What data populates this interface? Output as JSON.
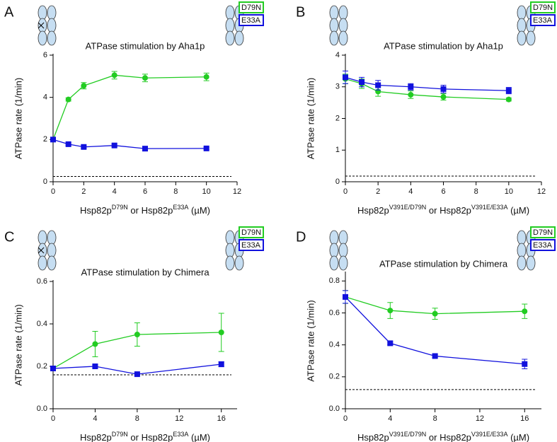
{
  "chart_data": [
    {
      "type": "line",
      "panel": "A",
      "title": "ATPase stimulation by Aha1p",
      "y_label": "ATPase rate (1/min)",
      "x_label": [
        "Hsp82p",
        "D79N",
        " or Hsp82p",
        "E33A",
        " (µM)"
      ],
      "x": [
        0,
        1,
        2,
        4,
        6,
        10
      ],
      "xlim": [
        0,
        12
      ],
      "xticks": [
        0,
        2,
        4,
        6,
        8,
        10,
        12
      ],
      "ylim": [
        0,
        6
      ],
      "yticks": [
        0,
        2,
        4,
        6
      ],
      "reference_line": 0.25,
      "series": [
        {
          "name": "D79N",
          "color": "#22cc22",
          "marker": "circle",
          "values": [
            2.0,
            3.9,
            4.55,
            5.05,
            4.92,
            4.97
          ],
          "errors": [
            0.08,
            0.08,
            0.15,
            0.18,
            0.18,
            0.18
          ]
        },
        {
          "name": "E33A",
          "color": "#1111dd",
          "marker": "square",
          "values": [
            2.0,
            1.78,
            1.65,
            1.72,
            1.57,
            1.58
          ],
          "errors": [
            0.06,
            0.06,
            0.06,
            0.06,
            0.05,
            0.05
          ]
        }
      ]
    },
    {
      "type": "line",
      "panel": "B",
      "title": "ATPase stimulation by Aha1p",
      "y_label": "ATPase rate (1/min)",
      "x_label": [
        "Hsp82p",
        "V391E/D79N",
        " or Hsp82p",
        "V391E/E33A",
        " (µM)"
      ],
      "x": [
        0,
        1,
        2,
        4,
        6,
        10
      ],
      "xlim": [
        0,
        12
      ],
      "xticks": [
        0,
        2,
        4,
        6,
        8,
        10,
        12
      ],
      "ylim": [
        0,
        4
      ],
      "yticks": [
        0,
        1,
        2,
        3,
        4
      ],
      "reference_line": 0.18,
      "series": [
        {
          "name": "D79N",
          "color": "#22cc22",
          "marker": "circle",
          "values": [
            3.25,
            3.1,
            2.85,
            2.75,
            2.68,
            2.6
          ],
          "errors": [
            0.15,
            0.15,
            0.15,
            0.12,
            0.1,
            0.05
          ]
        },
        {
          "name": "E33A",
          "color": "#1111dd",
          "marker": "square",
          "values": [
            3.3,
            3.15,
            3.05,
            3.0,
            2.93,
            2.88
          ],
          "errors": [
            0.2,
            0.15,
            0.15,
            0.1,
            0.12,
            0.1
          ]
        }
      ]
    },
    {
      "type": "line",
      "panel": "C",
      "title": "ATPase stimulation by Chimera",
      "y_label": "ATPase rate (1/min)",
      "x_label": [
        "Hsp82p",
        "D79N",
        " or Hsp82p",
        "E33A",
        " (µM)"
      ],
      "x": [
        0,
        4,
        8,
        16
      ],
      "xlim": [
        0,
        17.5
      ],
      "xticks": [
        0,
        4,
        8,
        12,
        16
      ],
      "ylim": [
        0,
        0.6
      ],
      "yticks": [
        {
          "value": 0,
          "label": "0.0"
        },
        0.2,
        0.4,
        0.6
      ],
      "reference_line": 0.16,
      "series": [
        {
          "name": "D79N",
          "color": "#22cc22",
          "marker": "circle",
          "values": [
            0.19,
            0.305,
            0.35,
            0.36
          ],
          "errors": [
            0.005,
            0.06,
            0.055,
            0.09
          ]
        },
        {
          "name": "E33A",
          "color": "#1111dd",
          "marker": "square",
          "values": [
            0.19,
            0.2,
            0.163,
            0.21
          ],
          "errors": [
            0.005,
            0.005,
            0.005,
            0.012
          ]
        }
      ]
    },
    {
      "type": "line",
      "panel": "D",
      "title": "ATPase stimulation by Chimera",
      "y_label": "ATPase rate (1/min)",
      "x_label": [
        "Hsp82p",
        "V391E/D79N",
        " or Hsp82p",
        "V391E/E33A",
        " (µM)"
      ],
      "x": [
        0,
        4,
        8,
        16
      ],
      "xlim": [
        0,
        17.5
      ],
      "xticks": [
        0,
        4,
        8,
        12,
        16
      ],
      "ylim": [
        0,
        0.85
      ],
      "yticks": [
        {
          "value": 0,
          "label": "0.0"
        },
        0.2,
        0.4,
        0.6,
        0.8
      ],
      "reference_line": 0.12,
      "series": [
        {
          "name": "D79N",
          "color": "#22cc22",
          "marker": "circle",
          "values": [
            0.7,
            0.615,
            0.595,
            0.61
          ],
          "errors": [
            0.04,
            0.05,
            0.035,
            0.045
          ]
        },
        {
          "name": "E33A",
          "color": "#1111dd",
          "marker": "square",
          "values": [
            0.7,
            0.41,
            0.33,
            0.28
          ],
          "errors": [
            0.04,
            0.01,
            0.01,
            0.03
          ]
        }
      ]
    }
  ]
}
